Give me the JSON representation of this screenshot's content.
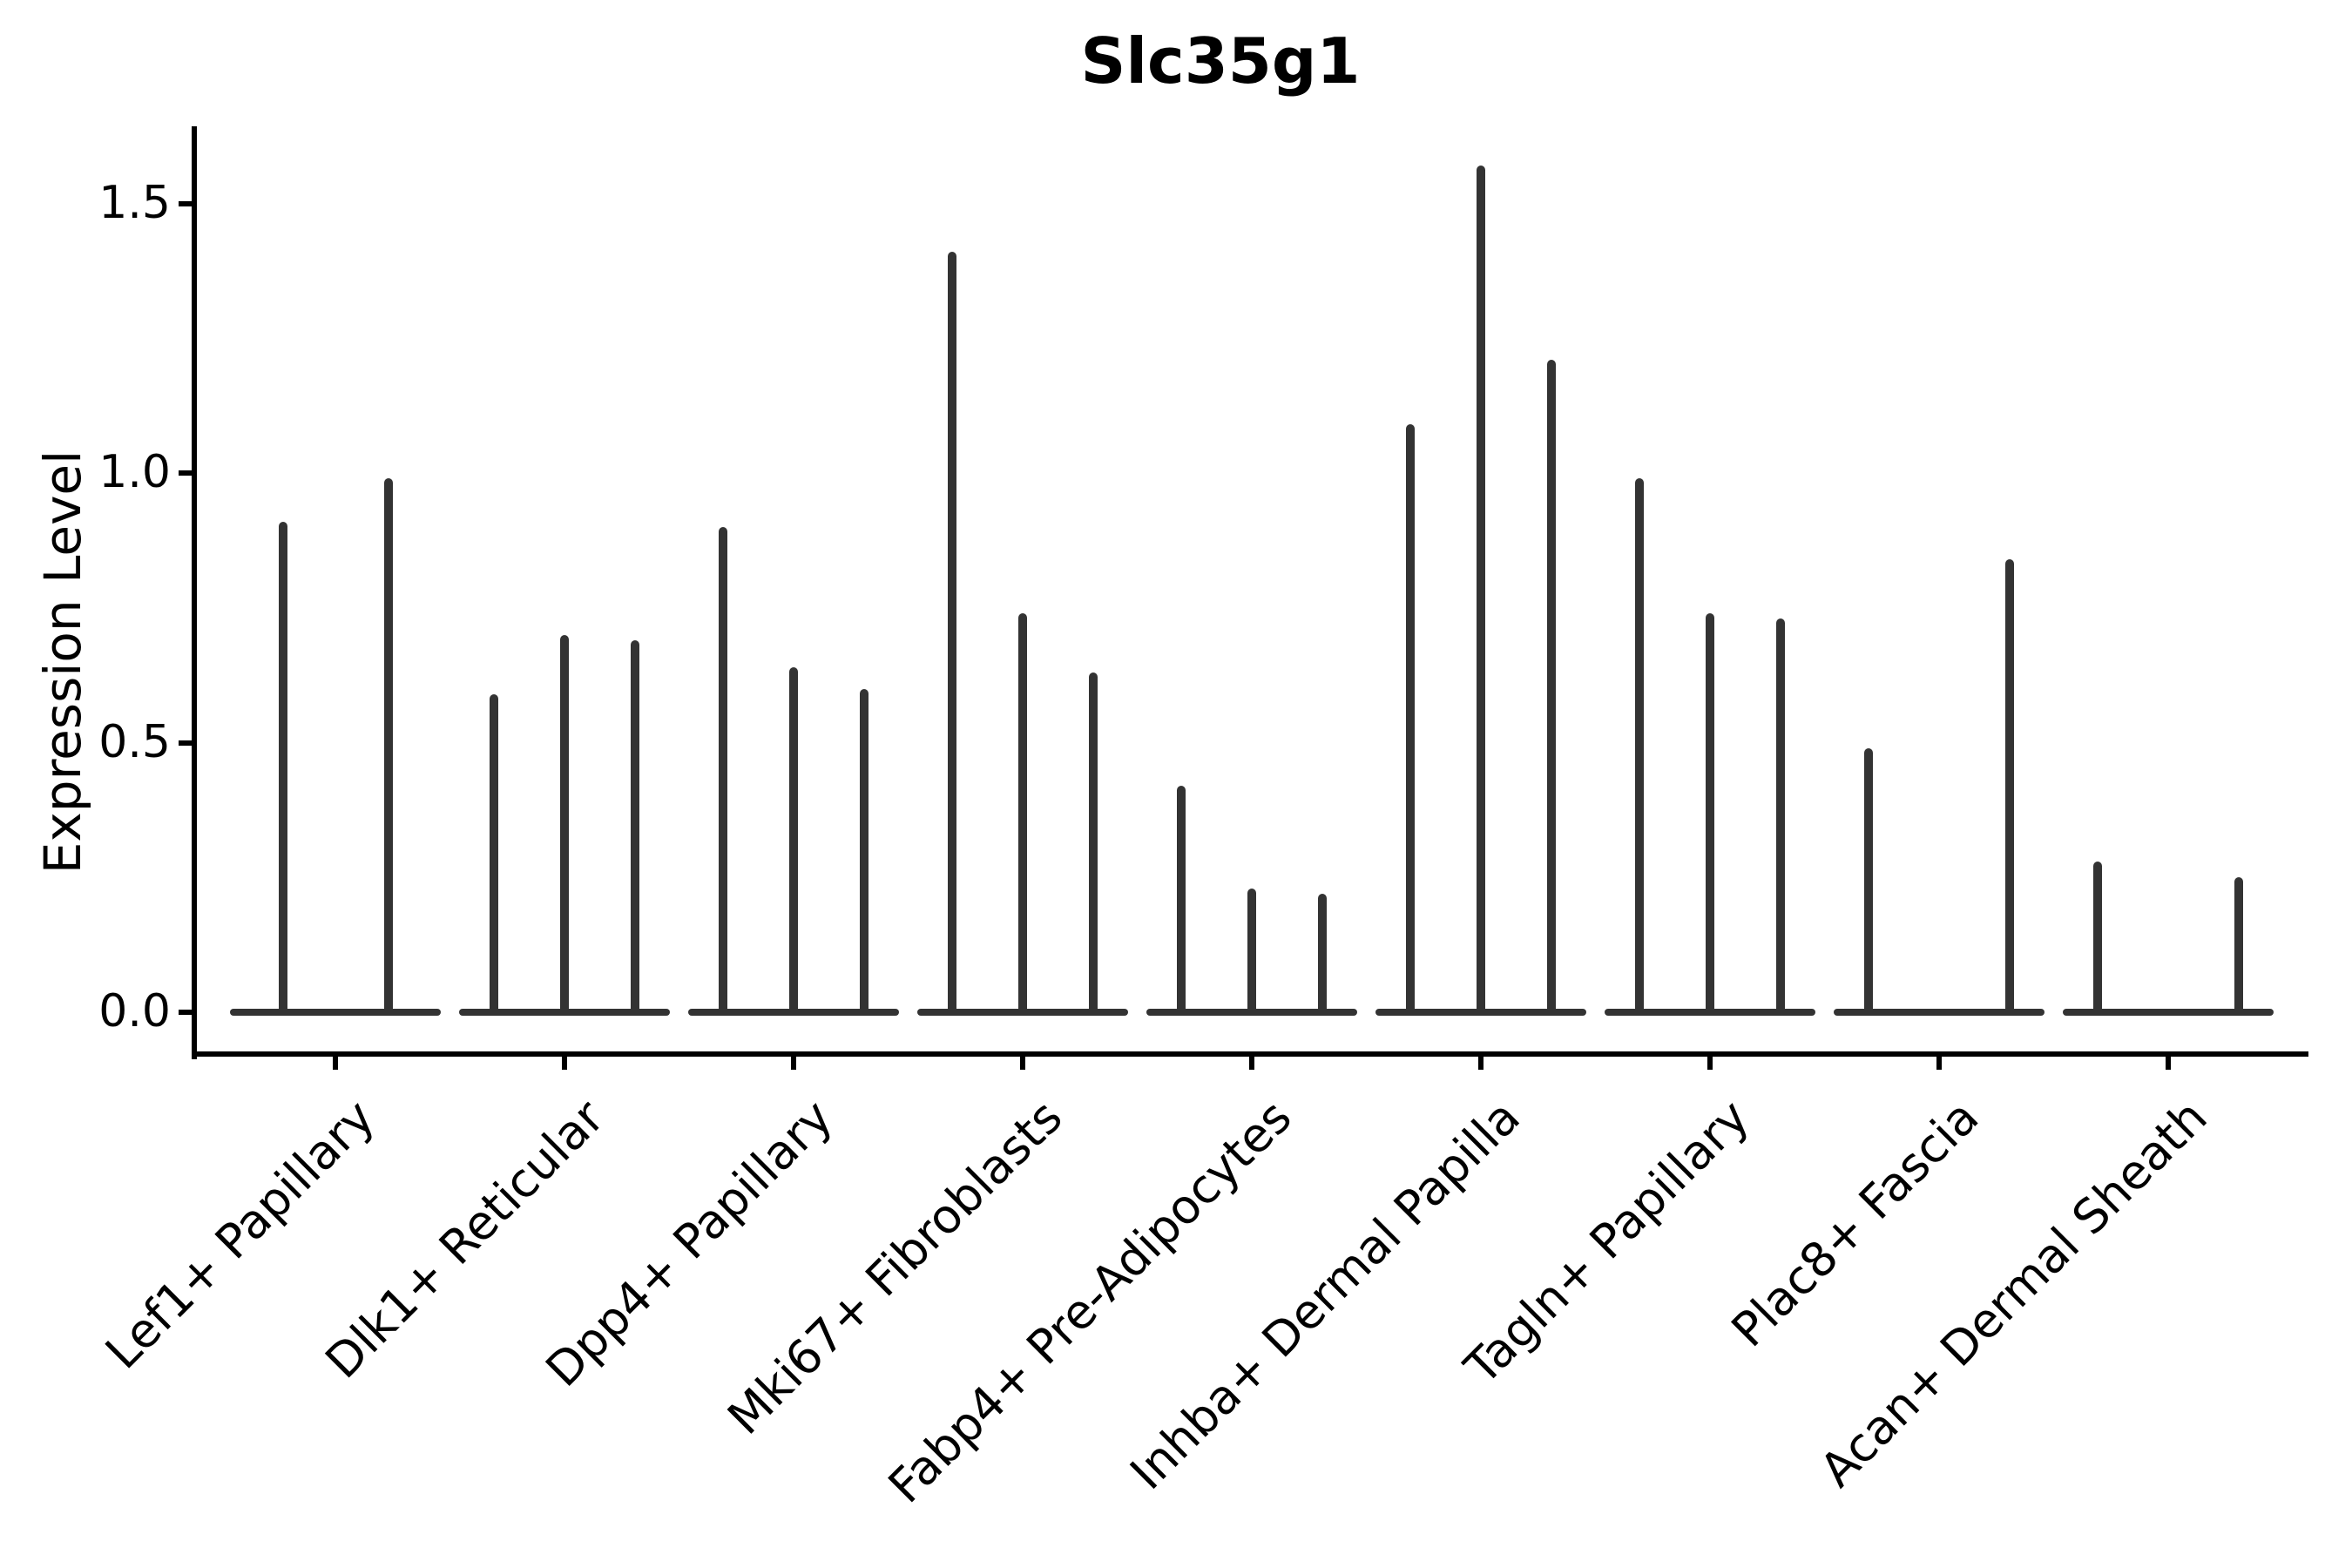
{
  "chart_data": {
    "type": "violin",
    "title": "Slc35g1",
    "ylabel": "Expression Level",
    "xlabel": "",
    "yticks": [
      "0.0",
      "0.5",
      "1.0",
      "1.5"
    ],
    "ytick_values": [
      0.0,
      0.5,
      1.0,
      1.5
    ],
    "ylim": [
      -0.08,
      1.64
    ],
    "grid": false,
    "legend": null,
    "violin_color": "#333333",
    "axis_color": "#000000",
    "categories": [
      "Lef1+ Papillary",
      "Dlk1+ Reticular",
      "Dpp4+ Papillary",
      "Mki67+ Fibroblasts",
      "Fabp4+ Pre-Adipocytes",
      "Inhba+ Dermal Papilla",
      "Tagln+ Papillary",
      "Plac8+ Fascia",
      "Acan+ Dermal Sheath"
    ],
    "groups": [
      {
        "category": "Lef1+ Papillary",
        "slots": 2,
        "violins": [
          {
            "slot": 0,
            "peak": 0.91
          },
          {
            "slot": 1,
            "peak": 0.99
          }
        ]
      },
      {
        "category": "Dlk1+ Reticular",
        "slots": 3,
        "violins": [
          {
            "slot": 0,
            "peak": 0.59
          },
          {
            "slot": 1,
            "peak": 0.7
          },
          {
            "slot": 2,
            "peak": 0.69
          }
        ]
      },
      {
        "category": "Dpp4+ Papillary",
        "slots": 3,
        "violins": [
          {
            "slot": 0,
            "peak": 0.9
          },
          {
            "slot": 1,
            "peak": 0.64
          },
          {
            "slot": 2,
            "peak": 0.6
          }
        ]
      },
      {
        "category": "Mki67+ Fibroblasts",
        "slots": 3,
        "violins": [
          {
            "slot": 0,
            "peak": 1.41
          },
          {
            "slot": 1,
            "peak": 0.74
          },
          {
            "slot": 2,
            "peak": 0.63
          }
        ]
      },
      {
        "category": "Fabp4+ Pre-Adipocytes",
        "slots": 3,
        "violins": [
          {
            "slot": 0,
            "peak": 0.42
          },
          {
            "slot": 1,
            "peak": 0.23
          },
          {
            "slot": 2,
            "peak": 0.22
          }
        ]
      },
      {
        "category": "Inhba+ Dermal Papilla",
        "slots": 3,
        "violins": [
          {
            "slot": 0,
            "peak": 1.09
          },
          {
            "slot": 1,
            "peak": 1.57
          },
          {
            "slot": 2,
            "peak": 1.21
          }
        ]
      },
      {
        "category": "Tagln+ Papillary",
        "slots": 3,
        "violins": [
          {
            "slot": 0,
            "peak": 0.99
          },
          {
            "slot": 1,
            "peak": 0.74
          },
          {
            "slot": 2,
            "peak": 0.73
          }
        ]
      },
      {
        "category": "Plac8+ Fascia",
        "slots": 3,
        "violins": [
          {
            "slot": 0,
            "peak": 0.49
          },
          {
            "slot": 2,
            "peak": 0.84
          }
        ]
      },
      {
        "category": "Acan+ Dermal Sheath",
        "slots": 3,
        "violins": [
          {
            "slot": 0,
            "peak": 0.28
          },
          {
            "slot": 2,
            "peak": 0.25
          }
        ]
      }
    ]
  }
}
